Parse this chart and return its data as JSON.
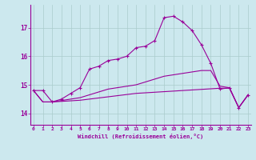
{
  "xlabel": "Windchill (Refroidissement éolien,°C)",
  "bg_color": "#cce8ee",
  "line_color": "#990099",
  "grid_color": "#aacccc",
  "x_ticks": [
    0,
    1,
    2,
    3,
    4,
    5,
    6,
    7,
    8,
    9,
    10,
    11,
    12,
    13,
    14,
    15,
    16,
    17,
    18,
    19,
    20,
    21,
    22,
    23
  ],
  "y_ticks": [
    14,
    15,
    16,
    17
  ],
  "ylim": [
    13.6,
    17.8
  ],
  "xlim": [
    -0.3,
    23.3
  ],
  "series1": [
    14.8,
    14.8,
    14.4,
    14.5,
    14.7,
    14.9,
    15.55,
    15.65,
    15.85,
    15.9,
    16.0,
    16.3,
    16.35,
    16.55,
    17.35,
    17.4,
    17.2,
    16.9,
    16.4,
    15.75,
    14.85,
    14.9,
    14.2,
    14.65
  ],
  "series2": [
    14.8,
    14.4,
    14.4,
    14.45,
    14.5,
    14.55,
    14.65,
    14.75,
    14.85,
    14.9,
    14.95,
    15.0,
    15.1,
    15.2,
    15.3,
    15.35,
    15.4,
    15.45,
    15.5,
    15.5,
    14.95,
    14.9,
    14.2,
    14.65
  ],
  "series3": [
    14.8,
    14.4,
    14.4,
    14.42,
    14.44,
    14.46,
    14.5,
    14.54,
    14.58,
    14.62,
    14.66,
    14.7,
    14.72,
    14.74,
    14.76,
    14.78,
    14.8,
    14.82,
    14.84,
    14.86,
    14.88,
    14.88,
    14.2,
    14.65
  ]
}
